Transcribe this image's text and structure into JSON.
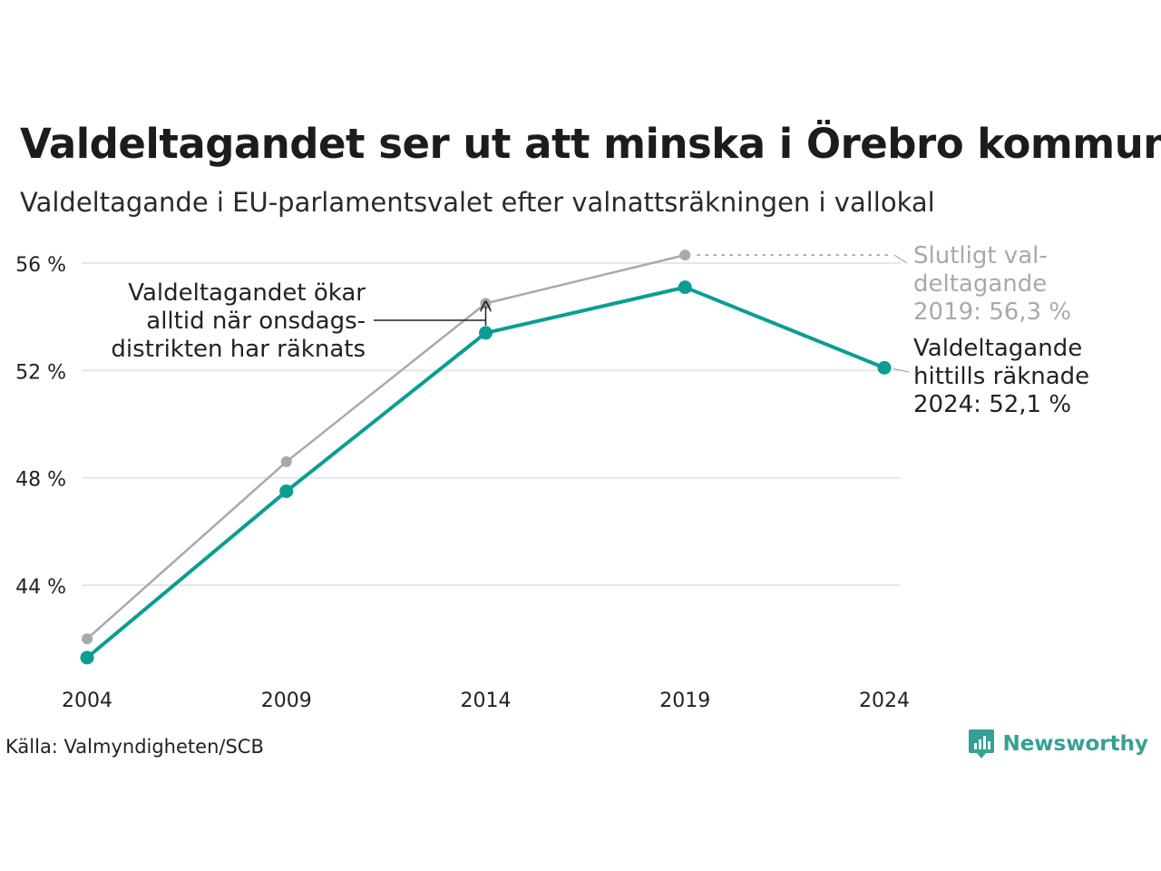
{
  "title": "Valdeltagandet ser ut att minska i Örebro kommun",
  "subtitle": "Valdeltagande i EU-parlamentsvalet efter valnattsräkningen i vallokal",
  "source": "Källa: Valmyndigheten/SCB",
  "brand": "Newsworthy",
  "colors": {
    "preliminary": "#0a9e93",
    "final": "#a9a9a9",
    "grid": "#e6e6e6",
    "text": "#222222"
  },
  "chart_data": {
    "type": "line",
    "title": "Valdeltagandet ser ut att minska i Örebro kommun",
    "subtitle": "Valdeltagande i EU-parlamentsvalet efter valnattsräkningen i vallokal",
    "x": [
      2004,
      2009,
      2014,
      2019,
      2024
    ],
    "x_tick_labels": [
      "2004",
      "2009",
      "2014",
      "2019",
      "2024"
    ],
    "y_ticks": [
      44,
      48,
      52,
      56
    ],
    "y_tick_labels": [
      "44 %",
      "48 %",
      "52 %",
      "56 %"
    ],
    "ylim": [
      40.5,
      56.5
    ],
    "grid": true,
    "series": [
      {
        "key": "final",
        "values": [
          42.0,
          48.6,
          54.5,
          56.3,
          null
        ],
        "color": "#a9a9a9"
      },
      {
        "key": "preliminary",
        "values": [
          41.3,
          47.5,
          53.4,
          55.1,
          52.1
        ],
        "color": "#0a9e93"
      }
    ],
    "annotations": {
      "onsdag": [
        "Valdeltagandet ökar",
        "alltid när onsdags-",
        "distrikten har räknats"
      ],
      "final": [
        "Slutligt val-",
        "deltagande",
        "2019: 56,3 %"
      ],
      "preliminary": [
        "Valdeltagande",
        "hittills räknade",
        "2024: 52,1 %"
      ]
    }
  }
}
